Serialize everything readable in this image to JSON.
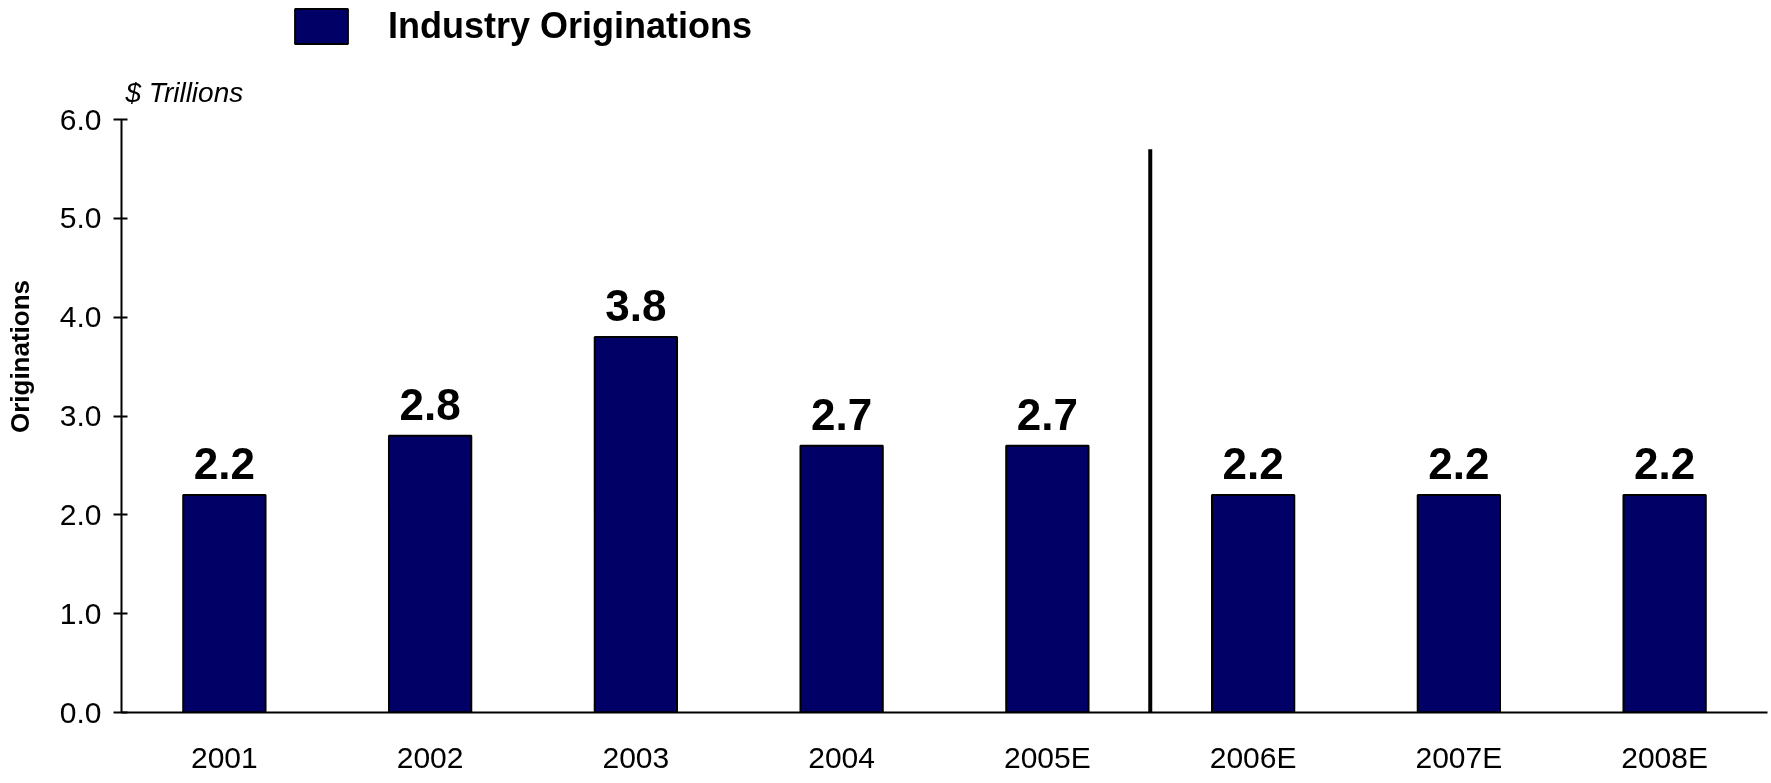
{
  "chart_data": {
    "type": "bar",
    "categories": [
      "2001",
      "2002",
      "2003",
      "2004",
      "2005E",
      "2006E",
      "2007E",
      "2008E"
    ],
    "series": [
      {
        "name": "Industry Originations",
        "color": "#000066",
        "values": [
          2.2,
          2.8,
          3.8,
          2.7,
          2.7,
          2.2,
          2.2,
          2.2
        ]
      }
    ],
    "ylabel": "Originations",
    "annotations": [
      "$ Trillions"
    ],
    "ylim": [
      0,
      6
    ],
    "yticks": [
      {
        "value": 0,
        "label": "0.0"
      },
      {
        "value": 1,
        "label": "1.0"
      },
      {
        "value": 2,
        "label": "2.0"
      },
      {
        "value": 3,
        "label": "3.0"
      },
      {
        "value": 4,
        "label": "4.0"
      },
      {
        "value": 5,
        "label": "5.0"
      },
      {
        "value": 6,
        "label": "6.0"
      }
    ],
    "data_labels": true,
    "legend": "top",
    "grid": false
  }
}
